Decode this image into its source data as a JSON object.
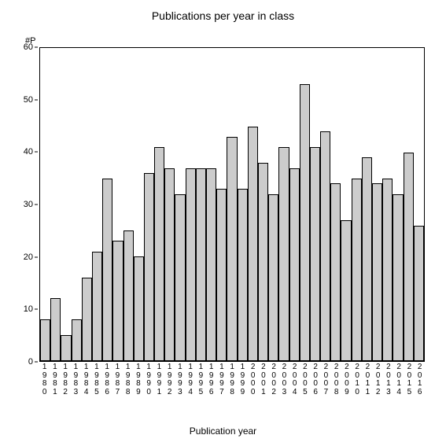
{
  "chart": {
    "type": "bar",
    "title": "Publications per year in class",
    "y_axis_label": "#P",
    "x_axis_title": "Publication year",
    "title_fontsize": 14,
    "label_fontsize": 11,
    "axis_title_fontsize": 12,
    "categories": [
      "1980",
      "1981",
      "1982",
      "1983",
      "1984",
      "1985",
      "1986",
      "1987",
      "1988",
      "1989",
      "1990",
      "1991",
      "1992",
      "1993",
      "1994",
      "1995",
      "1996",
      "1997",
      "1998",
      "1999",
      "2000",
      "2001",
      "2002",
      "2003",
      "2004",
      "2005",
      "2006",
      "2007",
      "2008",
      "2009",
      "2010",
      "2011",
      "2012",
      "2013",
      "2014",
      "2015",
      "2016"
    ],
    "values": [
      8,
      12,
      5,
      8,
      16,
      21,
      35,
      23,
      25,
      20,
      36,
      41,
      37,
      32,
      37,
      37,
      37,
      33,
      43,
      33,
      45,
      38,
      32,
      41,
      37,
      53,
      41,
      44,
      34,
      27,
      35,
      39,
      34,
      35,
      32,
      40,
      26
    ],
    "bar_color": "#cccccc",
    "bar_border_color": "#000000",
    "background_color": "#ffffff",
    "ylim": [
      0,
      60
    ],
    "ytick_step": 10,
    "yticks": [
      0,
      10,
      20,
      30,
      40,
      50,
      60
    ],
    "plot_border_color": "#000000",
    "text_color": "#000000"
  }
}
